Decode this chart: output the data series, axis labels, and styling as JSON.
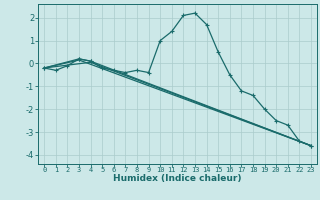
{
  "title": "",
  "xlabel": "Humidex (Indice chaleur)",
  "ylabel": "",
  "background_color": "#cce8e8",
  "grid_color": "#aacccc",
  "line_color": "#1a6b6b",
  "xlim": [
    -0.5,
    23.5
  ],
  "ylim": [
    -4.4,
    2.6
  ],
  "xticks": [
    0,
    1,
    2,
    3,
    4,
    5,
    6,
    7,
    8,
    9,
    10,
    11,
    12,
    13,
    14,
    15,
    16,
    17,
    18,
    19,
    20,
    21,
    22,
    23
  ],
  "yticks": [
    -4,
    -3,
    -2,
    -1,
    0,
    1,
    2
  ],
  "series": [
    [
      0,
      -0.2
    ],
    [
      1,
      -0.3
    ],
    [
      2,
      -0.1
    ],
    [
      3,
      0.2
    ],
    [
      4,
      0.1
    ],
    [
      5,
      -0.2
    ],
    [
      6,
      -0.3
    ],
    [
      7,
      -0.4
    ],
    [
      8,
      -0.3
    ],
    [
      9,
      -0.4
    ],
    [
      10,
      1.0
    ],
    [
      11,
      1.4
    ],
    [
      12,
      2.1
    ],
    [
      13,
      2.2
    ],
    [
      14,
      1.7
    ],
    [
      15,
      0.5
    ],
    [
      16,
      -0.5
    ],
    [
      17,
      -1.2
    ],
    [
      18,
      -1.4
    ],
    [
      19,
      -2.0
    ],
    [
      20,
      -2.5
    ],
    [
      21,
      -2.7
    ],
    [
      22,
      -3.4
    ],
    [
      23,
      -3.6
    ]
  ],
  "line2": [
    [
      0,
      -0.2
    ],
    [
      3,
      0.2
    ],
    [
      4,
      0.1
    ],
    [
      23,
      -3.6
    ]
  ],
  "line3": [
    [
      0,
      -0.2
    ],
    [
      3,
      0.15
    ],
    [
      23,
      -3.6
    ]
  ],
  "line4": [
    [
      0,
      -0.2
    ],
    [
      4,
      0.05
    ],
    [
      23,
      -3.6
    ]
  ]
}
